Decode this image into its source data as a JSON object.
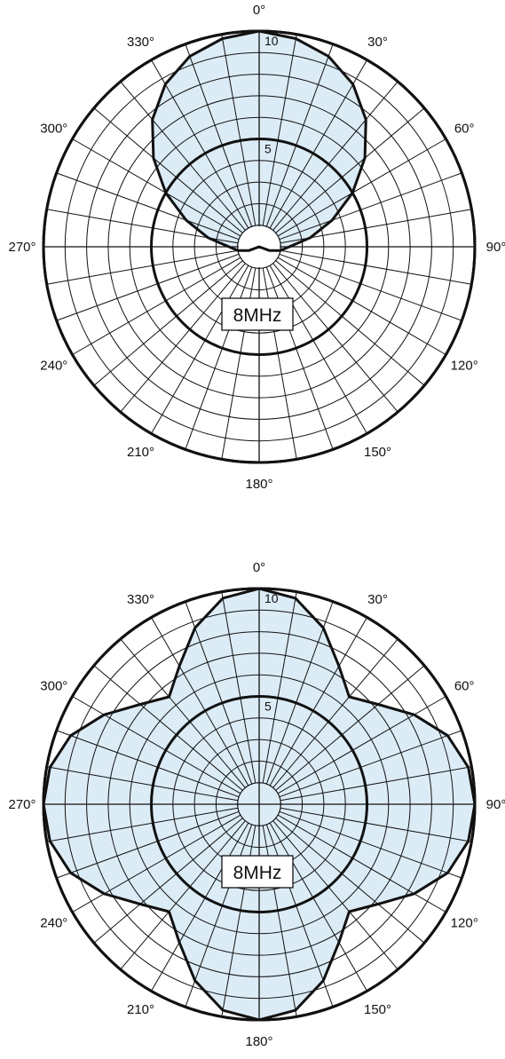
{
  "chart_data": [
    {
      "type": "polar",
      "pattern": "cardioid",
      "r_max": 10,
      "rings": [
        1,
        2,
        3,
        4,
        5,
        6,
        7,
        8,
        9,
        10
      ],
      "bold_rings": [
        5,
        10
      ],
      "ring_labels": [
        "5",
        "10"
      ],
      "spokes_deg": 10,
      "angle_labels": [
        "0°",
        "30°",
        "60°",
        "90°",
        "120°",
        "150°",
        "180°",
        "210°",
        "240°",
        "270°",
        "300°",
        "330°"
      ],
      "annotation": "8MHz",
      "fill_color": "#dcecf6",
      "series": [
        {
          "theta_deg": [
            0,
            10,
            20,
            30,
            40,
            50,
            60,
            70,
            80,
            90,
            100,
            110,
            120,
            130,
            140,
            150,
            160,
            170,
            180,
            190,
            200,
            210,
            220,
            230,
            240,
            250,
            260,
            270,
            280,
            290,
            300,
            310,
            320,
            330,
            340,
            350
          ],
          "r": [
            10,
            9.8,
            9.4,
            8.7,
            7.7,
            6.4,
            5.0,
            3.6,
            2.4,
            1.4,
            1.0,
            0.5,
            0,
            0,
            0,
            0,
            0,
            0,
            0,
            0,
            0,
            0,
            0,
            0,
            0,
            0.5,
            1.0,
            1.4,
            2.4,
            3.6,
            5.0,
            6.4,
            7.7,
            8.7,
            9.4,
            9.8
          ]
        }
      ]
    },
    {
      "type": "polar",
      "pattern": "cloverleaf",
      "r_max": 10,
      "rings": [
        1,
        2,
        3,
        4,
        5,
        6,
        7,
        8,
        9,
        10
      ],
      "bold_rings": [
        5,
        10
      ],
      "ring_labels": [
        "5",
        "10"
      ],
      "spokes_deg": 10,
      "angle_labels": [
        "0°",
        "30°",
        "60°",
        "90°",
        "120°",
        "150°",
        "180°",
        "210°",
        "240°",
        "270°",
        "300°",
        "330°"
      ],
      "annotation": "8MHz",
      "fill_color": "#dcecf6",
      "series": [
        {
          "theta_deg": [
            0,
            10,
            20,
            30,
            40,
            50,
            60,
            70,
            80,
            90,
            100,
            110,
            120,
            130,
            140,
            150,
            160,
            170,
            180,
            190,
            200,
            210,
            220,
            230,
            240,
            250,
            260,
            270,
            280,
            290,
            300,
            310,
            320,
            330,
            340,
            350
          ],
          "r": [
            10,
            9.7,
            8.7,
            7.4,
            6.5,
            7.2,
            8.3,
            9.3,
            9.85,
            10,
            9.85,
            9.3,
            8.3,
            7.2,
            6.5,
            7.4,
            8.7,
            9.7,
            10,
            9.7,
            8.7,
            7.4,
            6.5,
            7.2,
            8.3,
            9.3,
            9.85,
            10,
            9.85,
            9.3,
            8.3,
            7.2,
            6.5,
            7.4,
            8.7,
            9.7
          ]
        }
      ]
    }
  ]
}
